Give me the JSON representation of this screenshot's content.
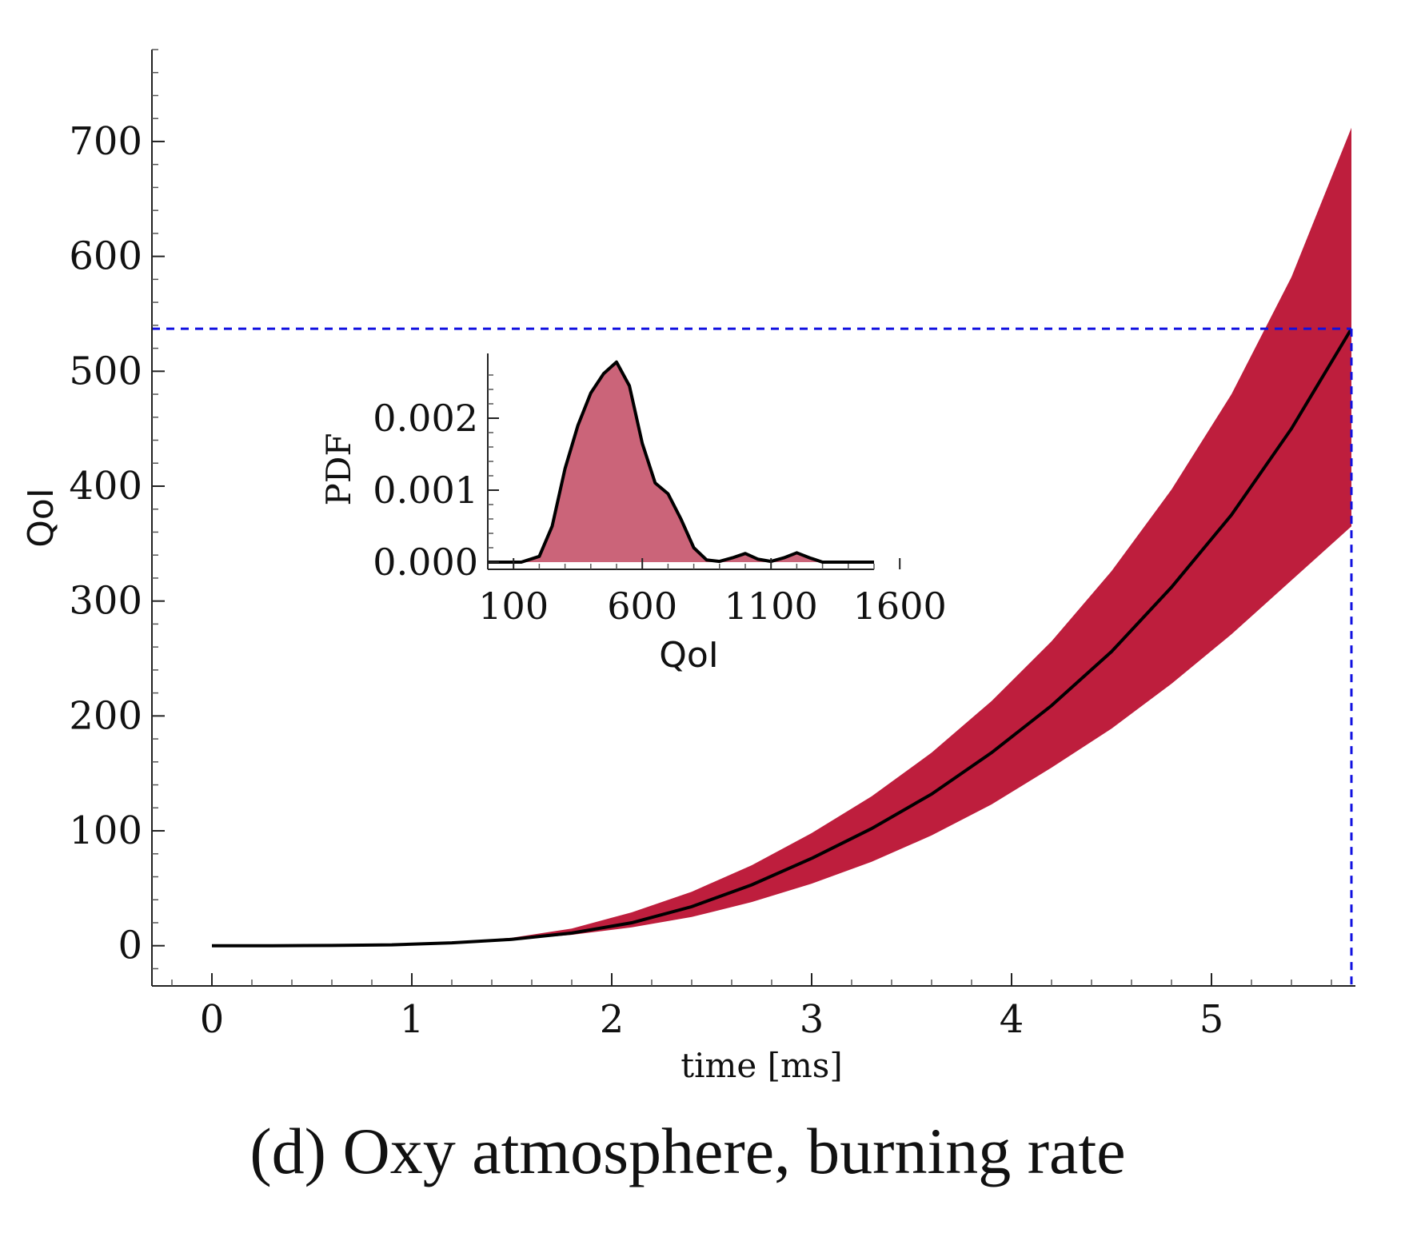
{
  "caption": "(d) Oxy atmosphere, burning rate",
  "chart_data": [
    {
      "type": "area",
      "xlabel": "time [ms]",
      "ylabel": "QoI",
      "xlim": [
        -0.3,
        5.72
      ],
      "ylim": [
        -35,
        780
      ],
      "xticks": [
        0,
        1,
        2,
        3,
        4,
        5
      ],
      "yticks": [
        0,
        100,
        200,
        300,
        400,
        500,
        600,
        700
      ],
      "grid": false,
      "band_color": "#be1e3d",
      "mean_color": "#000000",
      "reference_color": "#1010e0",
      "x": [
        0,
        0.3,
        0.6,
        0.9,
        1.2,
        1.5,
        1.8,
        2.1,
        2.4,
        2.7,
        3.0,
        3.3,
        3.6,
        3.9,
        4.2,
        4.5,
        4.8,
        5.1,
        5.4,
        5.7
      ],
      "series": [
        {
          "values": [
            0,
            0,
            0.2,
            0.8,
            2.5,
            5.5,
            11,
            20,
            34,
            53,
            76,
            102,
            132,
            168,
            209,
            256,
            312,
            375,
            450,
            537
          ]
        },
        {
          "values": [
            0,
            0,
            0.2,
            0.8,
            2.3,
            5,
            9.5,
            16,
            25,
            38,
            54,
            73,
            96,
            123,
            155,
            189,
            228,
            271,
            318,
            365
          ]
        },
        {
          "values": [
            0,
            0,
            0.2,
            0.9,
            2.8,
            7,
            15,
            29,
            47,
            70,
            98,
            130,
            168,
            213,
            265,
            326,
            397,
            480,
            582,
            712
          ]
        }
      ],
      "reference_lines": {
        "x": 5.7,
        "y": 537
      }
    },
    {
      "type": "area",
      "xlabel": "QoI",
      "ylabel": "PDF",
      "xlim": [
        0,
        1500
      ],
      "ylim": [
        -0.0001,
        0.0029
      ],
      "xticks": [
        100,
        600,
        1100,
        1600
      ],
      "yticks": [
        0.0,
        0.001,
        0.002
      ],
      "ytick_labels": [
        "0.000",
        "0.001",
        "0.002"
      ],
      "grid": false,
      "fill_color": "#cb6479",
      "line_color": "#000000",
      "x": [
        0,
        130,
        200,
        250,
        300,
        350,
        400,
        450,
        500,
        550,
        600,
        650,
        700,
        750,
        800,
        850,
        900,
        950,
        1000,
        1050,
        1100,
        1150,
        1200,
        1250,
        1300,
        1350,
        1400,
        1450,
        1500
      ],
      "y": [
        0,
        0,
        8e-05,
        0.0005,
        0.0013,
        0.0019,
        0.00235,
        0.00262,
        0.00278,
        0.00245,
        0.00165,
        0.0011,
        0.00095,
        0.0006,
        0.0002,
        3e-05,
        1e-05,
        6e-05,
        0.00012,
        4e-05,
        1e-05,
        6e-05,
        0.00013,
        6e-05,
        0,
        0,
        0,
        0,
        0
      ]
    }
  ]
}
